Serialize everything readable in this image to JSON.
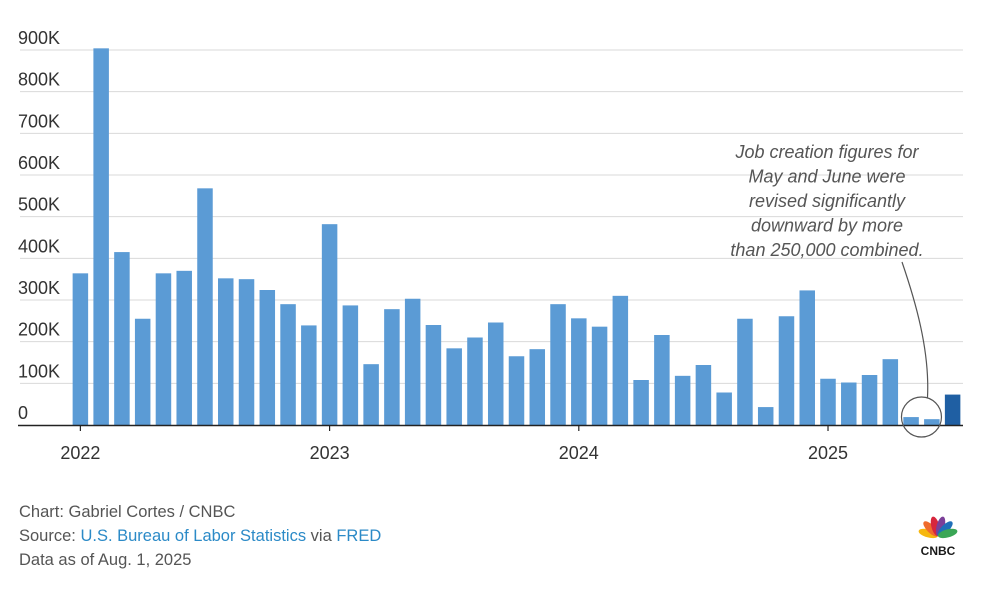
{
  "chart_data": {
    "type": "bar",
    "ylim": [
      0,
      900000
    ],
    "yticks": [
      {
        "value": 0,
        "label": "0"
      },
      {
        "value": 100000,
        "label": "100K"
      },
      {
        "value": 200000,
        "label": "200K"
      },
      {
        "value": 300000,
        "label": "300K"
      },
      {
        "value": 400000,
        "label": "400K"
      },
      {
        "value": 500000,
        "label": "500K"
      },
      {
        "value": 600000,
        "label": "600K"
      },
      {
        "value": 700000,
        "label": "700K"
      },
      {
        "value": 800000,
        "label": "800K"
      },
      {
        "value": 900000,
        "label": "900K"
      }
    ],
    "xticks": [
      {
        "x": "2022-01",
        "label": "2022"
      },
      {
        "x": "2023-01",
        "label": "2023"
      },
      {
        "x": "2024-01",
        "label": "2024"
      },
      {
        "x": "2025-01",
        "label": "2025"
      }
    ],
    "x": [
      "2022-01",
      "2022-02",
      "2022-03",
      "2022-04",
      "2022-05",
      "2022-06",
      "2022-07",
      "2022-08",
      "2022-09",
      "2022-10",
      "2022-11",
      "2022-12",
      "2023-01",
      "2023-02",
      "2023-03",
      "2023-04",
      "2023-05",
      "2023-06",
      "2023-07",
      "2023-08",
      "2023-09",
      "2023-10",
      "2023-11",
      "2023-12",
      "2024-01",
      "2024-02",
      "2024-03",
      "2024-04",
      "2024-05",
      "2024-06",
      "2024-07",
      "2024-08",
      "2024-09",
      "2024-10",
      "2024-11",
      "2024-12",
      "2025-01",
      "2025-02",
      "2025-03",
      "2025-04",
      "2025-05",
      "2025-06",
      "2025-07"
    ],
    "values": [
      364000,
      904000,
      415000,
      255000,
      364000,
      370000,
      568000,
      352000,
      350000,
      324000,
      290000,
      239000,
      482000,
      287000,
      146000,
      278000,
      303000,
      240000,
      184000,
      210000,
      246000,
      165000,
      182000,
      290000,
      256000,
      236000,
      310000,
      108000,
      216000,
      118000,
      144000,
      78000,
      255000,
      43000,
      261000,
      323000,
      111000,
      102000,
      120000,
      158000,
      19000,
      14000,
      73000
    ],
    "highlight": [
      "2025-05",
      "2025-06"
    ],
    "latest": "2025-07",
    "colors": {
      "bar": "#5b9bd5",
      "latest": "#1f5fa3",
      "grid": "#d9d9d9",
      "axis": "#222222"
    },
    "annotation": [
      "Job creation figures for",
      "May and June were",
      "revised significantly",
      "downward by more",
      "than 250,000 combined."
    ]
  },
  "footer": {
    "credit": "Chart: Gabriel Cortes / CNBC",
    "source_prefix": "Source: ",
    "source_link1": "U.S. Bureau of Labor Statistics",
    "source_mid": " via ",
    "source_link2": "FRED",
    "data_as_of": "Data as of Aug. 1, 2025"
  },
  "logo": {
    "text": "CNBC"
  }
}
